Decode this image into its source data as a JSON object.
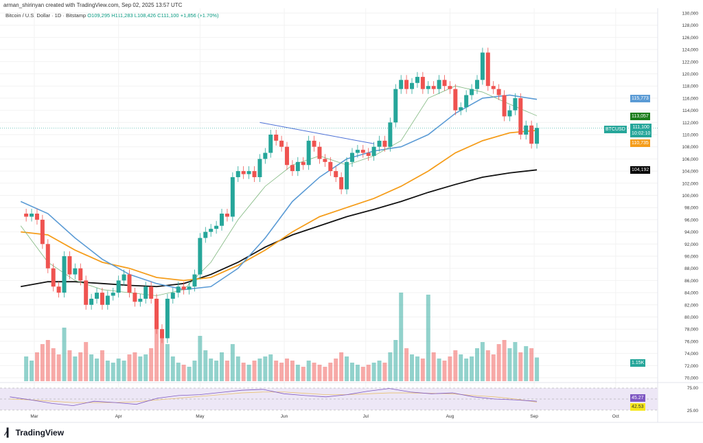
{
  "header": {
    "credit": "arman_shirinyan created with TradingView.com, Sep 02, 2025 13:57 UTC",
    "symbol": "Bitcoin / U.S. Dollar · 1D · Bitstamp",
    "open": "O109,295",
    "high": "H111,283",
    "low": "L108,426",
    "close": "C111,100",
    "change": "+1,856 (+1.70%)"
  },
  "logo": "TradingView",
  "badges": {
    "ma50": "115,773",
    "ma20": "113,057",
    "ticker": "BTCUSD",
    "price": "111,100",
    "countdown": "10:02:10",
    "ma100": "110,735",
    "ma200": "104,192",
    "volume": "1.15K",
    "rsi": "45.27",
    "rsi_ma": "42.53"
  },
  "colors": {
    "up": "#26a69a",
    "down": "#ef5350",
    "ma20": "#7fb77e",
    "ma50": "#5b9bd5",
    "ma100": "#f59d1b",
    "ma200": "#111111",
    "rsi": "#7e57c2",
    "rsi_band": "#ede7f6"
  },
  "chart_data": {
    "type": "candlestick",
    "interval_days": 2,
    "ylim": [
      70000,
      130000
    ],
    "price_ticks": [
      "130,000",
      "128,000",
      "126,000",
      "124,000",
      "122,000",
      "120,000",
      "118,000",
      "116,000",
      "114,000",
      "112,000",
      "110,000",
      "108,000",
      "106,000",
      "104,000",
      "102,000",
      "100,000",
      "98,000",
      "96,000",
      "94,000",
      "92,000",
      "90,000",
      "88,000",
      "86,000",
      "84,000",
      "82,000",
      "80,000",
      "78,000",
      "76,000",
      "74,000",
      "72,000",
      "70,000"
    ],
    "x_ticks": [
      "Mar",
      "Apr",
      "May",
      "Jun",
      "Jul",
      "Aug",
      "Sep",
      "Oct"
    ],
    "close_k": [
      96.5,
      97,
      96,
      92,
      88,
      85,
      84,
      90,
      87,
      88,
      86,
      82,
      83,
      84,
      82,
      83.5,
      84,
      86,
      87,
      84,
      82.5,
      83,
      85,
      83,
      78,
      76.5,
      83,
      84,
      85,
      84.5,
      85,
      87,
      93,
      94,
      94.5,
      95,
      97,
      96.5,
      103,
      104,
      103.5,
      104,
      103,
      106,
      107,
      110,
      109,
      108,
      105,
      104,
      105.5,
      105,
      109,
      108,
      106,
      105.5,
      104,
      103,
      101,
      105.5,
      107,
      107.5,
      107,
      106.5,
      108,
      109,
      108,
      112,
      117.5,
      119,
      117.5,
      118.5,
      119.5,
      117.5,
      118,
      117.5,
      119,
      118,
      117.5,
      114,
      114.5,
      116.5,
      117.5,
      119,
      123.5,
      118,
      117.5,
      116.5,
      113,
      114,
      116,
      110,
      111.5,
      108.5,
      111.1
    ],
    "volume_k": [
      1.2,
      1.0,
      1.4,
      1.8,
      2.0,
      1.6,
      1.3,
      2.6,
      1.5,
      1.2,
      1.4,
      1.9,
      1.3,
      1.1,
      1.5,
      1.0,
      0.9,
      1.1,
      1.0,
      1.3,
      1.4,
      1.2,
      1.3,
      1.6,
      2.8,
      2.4,
      1.8,
      1.2,
      0.9,
      0.8,
      0.7,
      1.0,
      2.2,
      1.5,
      1.1,
      1.0,
      1.4,
      1.0,
      1.8,
      1.2,
      0.9,
      0.8,
      1.0,
      1.1,
      1.2,
      1.3,
      1.0,
      0.9,
      1.1,
      1.0,
      0.8,
      0.7,
      1.0,
      0.9,
      0.8,
      0.7,
      0.9,
      1.1,
      1.4,
      1.2,
      0.9,
      0.8,
      0.7,
      0.8,
      0.9,
      1.0,
      0.9,
      1.4,
      2.0,
      4.3,
      1.6,
      1.3,
      1.2,
      1.1,
      4.2,
      1.4,
      1.1,
      1.0,
      1.2,
      1.5,
      1.3,
      1.1,
      1.2,
      1.6,
      1.9,
      1.5,
      1.3,
      1.8,
      2.0,
      1.6,
      1.9,
      1.4,
      1.7,
      1.6,
      1.15
    ],
    "ma_interval_days": 10,
    "ma20_k": [
      95,
      89,
      86,
      84.5,
      84,
      83.5,
      84.5,
      89,
      96,
      101.5,
      105,
      106.5,
      105,
      106.5,
      109,
      116,
      118,
      117,
      115,
      113.1
    ],
    "ma50_k": [
      99,
      97,
      93,
      89.5,
      87,
      85.5,
      84.5,
      85,
      88,
      93,
      99,
      103,
      106,
      107.3,
      108,
      110,
      113.5,
      116,
      116.5,
      115.8
    ],
    "ma100_k": [
      94,
      93.5,
      91,
      89,
      88,
      86.5,
      86,
      86.5,
      88.5,
      91,
      94,
      96.5,
      98,
      99.5,
      101.5,
      104,
      107,
      109,
      110.3,
      110.7
    ],
    "ma200_k": [
      85,
      85.8,
      85.8,
      85.5,
      85.2,
      85,
      85.5,
      87,
      89,
      91.5,
      93.5,
      95,
      96.5,
      97.7,
      99,
      100.5,
      101.8,
      103,
      103.7,
      104.2
    ],
    "trendline_k": [
      112,
      108.5
    ],
    "rsi_levels": [
      "75.00",
      "25.00"
    ],
    "rsi": [
      55,
      48,
      40,
      35,
      45,
      42,
      38,
      52,
      58,
      60,
      65,
      70,
      72,
      62,
      58,
      55,
      60,
      68,
      74,
      66,
      62,
      64,
      55,
      50,
      48,
      45
    ],
    "rsi_ma": [
      50,
      48,
      45,
      42,
      42,
      42,
      44,
      48,
      52,
      56,
      60,
      64,
      66,
      66,
      63,
      60,
      60,
      62,
      64,
      64,
      63,
      62,
      58,
      55,
      50,
      43
    ]
  }
}
